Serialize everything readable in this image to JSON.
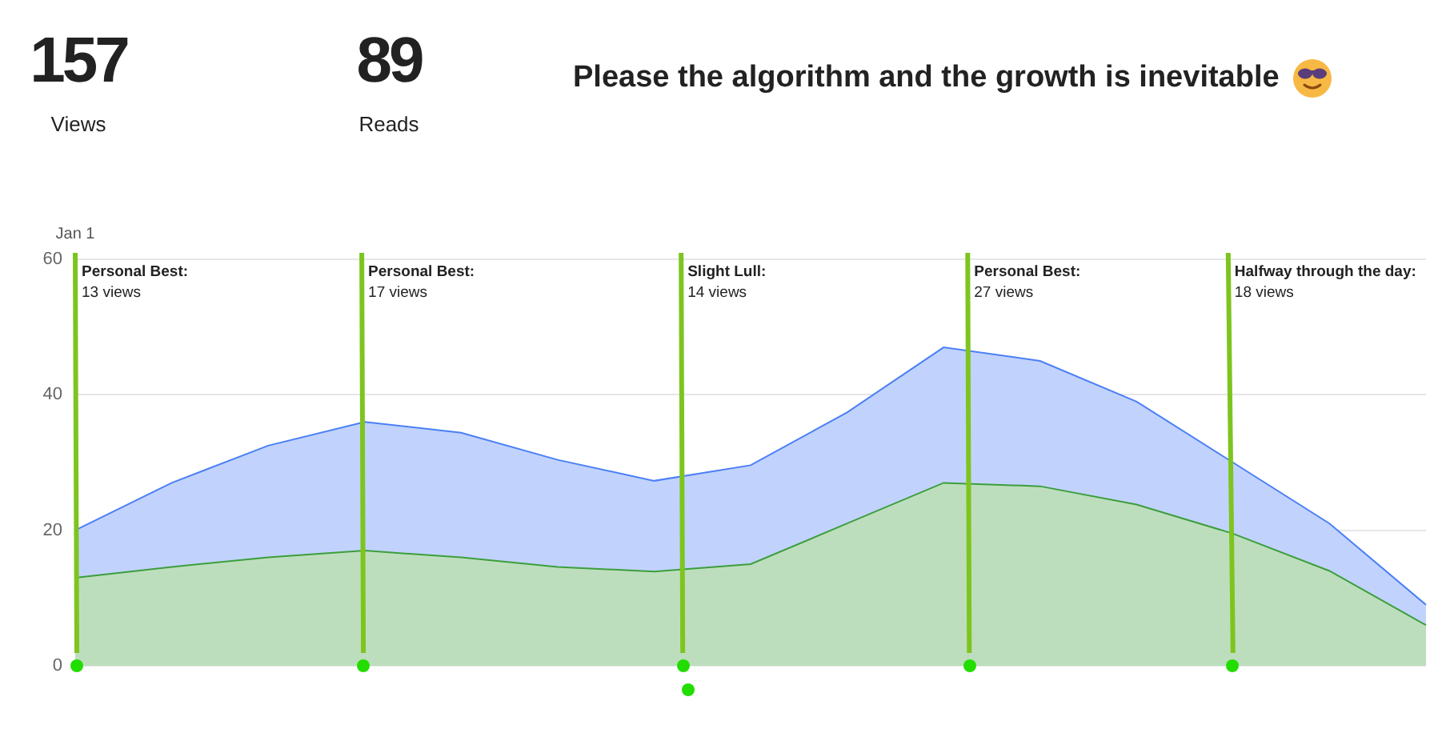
{
  "chart_data": {
    "type": "area",
    "title": "Please the algorithm and the growth is inevitable",
    "annotations": [
      "157",
      "Views",
      "89",
      "Reads",
      "Personal Best:",
      "13 views",
      "Personal Best:",
      "17 views",
      "Slight Lull:",
      "14 views",
      "Personal Best:",
      "27 views",
      "Halfway through the day:",
      "18 views"
    ],
    "categories": [
      "Jan 1",
      null,
      null,
      null,
      null,
      null,
      null,
      null,
      null,
      null,
      null,
      null,
      null,
      null,
      null
    ],
    "ylim": [
      0,
      60
    ],
    "yticks": [
      0,
      20,
      40,
      60
    ],
    "grid": "y",
    "legend": false,
    "series": [
      {
        "color": "#4a7ff5",
        "values": [
          20,
          27,
          32.5,
          36,
          34.4,
          30.4,
          27.3,
          29.6,
          37.4,
          47,
          45,
          39,
          30,
          21,
          9
        ]
      },
      {
        "color": "#3c9e3c",
        "values": [
          13,
          14.6,
          16,
          17,
          16,
          14.6,
          13.9,
          15,
          21,
          27,
          26.5,
          23.8,
          19.5,
          14,
          6
        ]
      }
    ]
  }
}
